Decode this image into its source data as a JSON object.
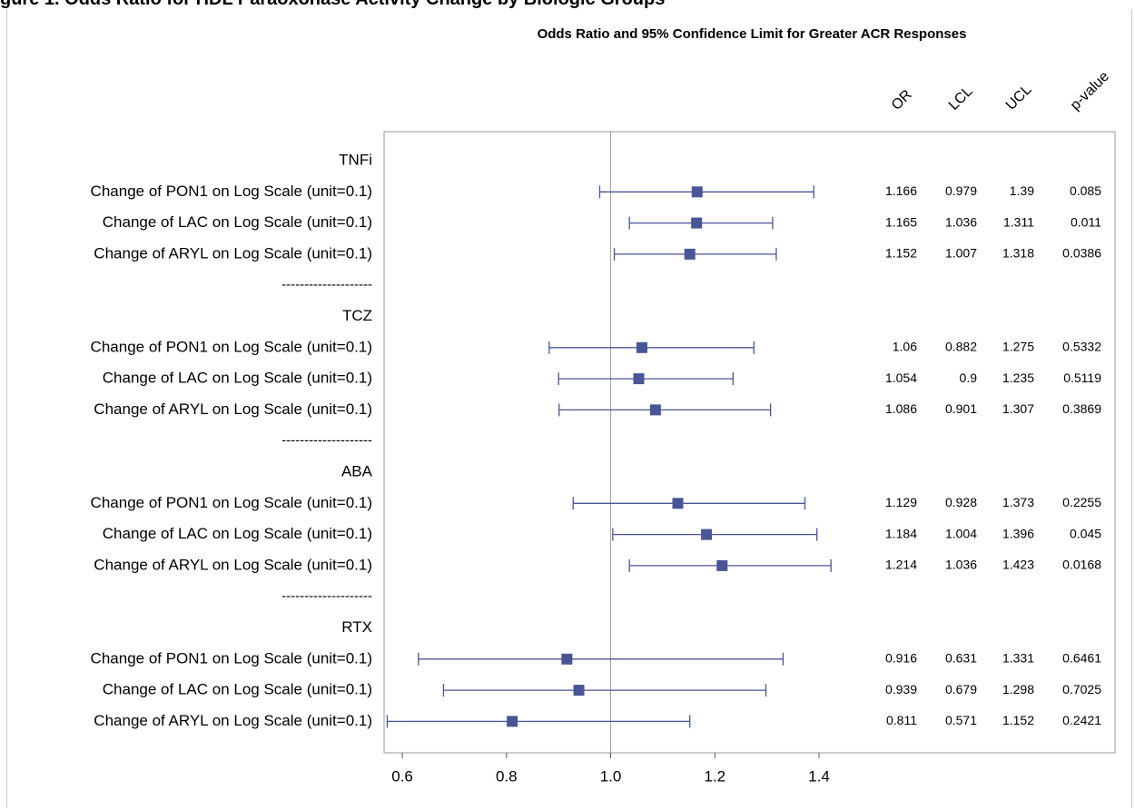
{
  "header_fragment": "gure 1. Odds Ratio for HDL Paraoxonase Activity Change by Biologic Groups",
  "chart_data": {
    "type": "forest",
    "title": "Odds Ratio and 95% Confidence Limit for Greater ACR Responses",
    "xlabel": "",
    "ylabel": "",
    "x_ticks": [
      0.6,
      0.8,
      1.0,
      1.2,
      1.4
    ],
    "x_tick_labels": [
      "0.6",
      "0.8",
      "1.0",
      "1.2",
      "1.4"
    ],
    "xlim": [
      0.565,
      1.475
    ],
    "reference_line": 1.0,
    "separator_label": "--------------------",
    "table_headers": [
      "OR",
      "LCL",
      "UCL",
      "p-value"
    ],
    "marker_color": "#4a5597",
    "groups": [
      {
        "name": "TNFi",
        "rows": [
          {
            "label": "Change of PON1 on Log Scale (unit=0.1)",
            "or": 1.166,
            "lcl": 0.979,
            "ucl": 1.39,
            "or_text": "1.166",
            "lcl_text": "0.979",
            "ucl_text": "1.39",
            "p_text": "0.085"
          },
          {
            "label": "Change of LAC on Log Scale (unit=0.1)",
            "or": 1.165,
            "lcl": 1.036,
            "ucl": 1.311,
            "or_text": "1.165",
            "lcl_text": "1.036",
            "ucl_text": "1.311",
            "p_text": "0.011"
          },
          {
            "label": "Change of ARYL on Log Scale (unit=0.1)",
            "or": 1.152,
            "lcl": 1.007,
            "ucl": 1.318,
            "or_text": "1.152",
            "lcl_text": "1.007",
            "ucl_text": "1.318",
            "p_text": "0.0386"
          }
        ]
      },
      {
        "name": "TCZ",
        "rows": [
          {
            "label": "Change of PON1 on Log Scale (unit=0.1)",
            "or": 1.06,
            "lcl": 0.882,
            "ucl": 1.275,
            "or_text": "1.06",
            "lcl_text": "0.882",
            "ucl_text": "1.275",
            "p_text": "0.5332"
          },
          {
            "label": "Change of LAC on Log Scale (unit=0.1)",
            "or": 1.054,
            "lcl": 0.9,
            "ucl": 1.235,
            "or_text": "1.054",
            "lcl_text": "0.9",
            "ucl_text": "1.235",
            "p_text": "0.5119"
          },
          {
            "label": "Change of ARYL on Log Scale (unit=0.1)",
            "or": 1.086,
            "lcl": 0.901,
            "ucl": 1.307,
            "or_text": "1.086",
            "lcl_text": "0.901",
            "ucl_text": "1.307",
            "p_text": "0.3869"
          }
        ]
      },
      {
        "name": "ABA",
        "rows": [
          {
            "label": "Change of PON1 on Log Scale (unit=0.1)",
            "or": 1.129,
            "lcl": 0.928,
            "ucl": 1.373,
            "or_text": "1.129",
            "lcl_text": "0.928",
            "ucl_text": "1.373",
            "p_text": "0.2255"
          },
          {
            "label": "Change of LAC on Log Scale (unit=0.1)",
            "or": 1.184,
            "lcl": 1.004,
            "ucl": 1.396,
            "or_text": "1.184",
            "lcl_text": "1.004",
            "ucl_text": "1.396",
            "p_text": "0.045"
          },
          {
            "label": "Change of ARYL on Log Scale (unit=0.1)",
            "or": 1.214,
            "lcl": 1.036,
            "ucl": 1.423,
            "or_text": "1.214",
            "lcl_text": "1.036",
            "ucl_text": "1.423",
            "p_text": "0.0168"
          }
        ]
      },
      {
        "name": "RTX",
        "rows": [
          {
            "label": "Change of PON1 on Log Scale (unit=0.1)",
            "or": 0.916,
            "lcl": 0.631,
            "ucl": 1.331,
            "or_text": "0.916",
            "lcl_text": "0.631",
            "ucl_text": "1.331",
            "p_text": "0.6461"
          },
          {
            "label": "Change of LAC on Log Scale (unit=0.1)",
            "or": 0.939,
            "lcl": 0.679,
            "ucl": 1.298,
            "or_text": "0.939",
            "lcl_text": "0.679",
            "ucl_text": "1.298",
            "p_text": "0.7025"
          },
          {
            "label": "Change of ARYL on Log Scale (unit=0.1)",
            "or": 0.811,
            "lcl": 0.571,
            "ucl": 1.152,
            "or_text": "0.811",
            "lcl_text": "0.571",
            "ucl_text": "1.152",
            "p_text": "0.2421"
          }
        ]
      }
    ]
  }
}
